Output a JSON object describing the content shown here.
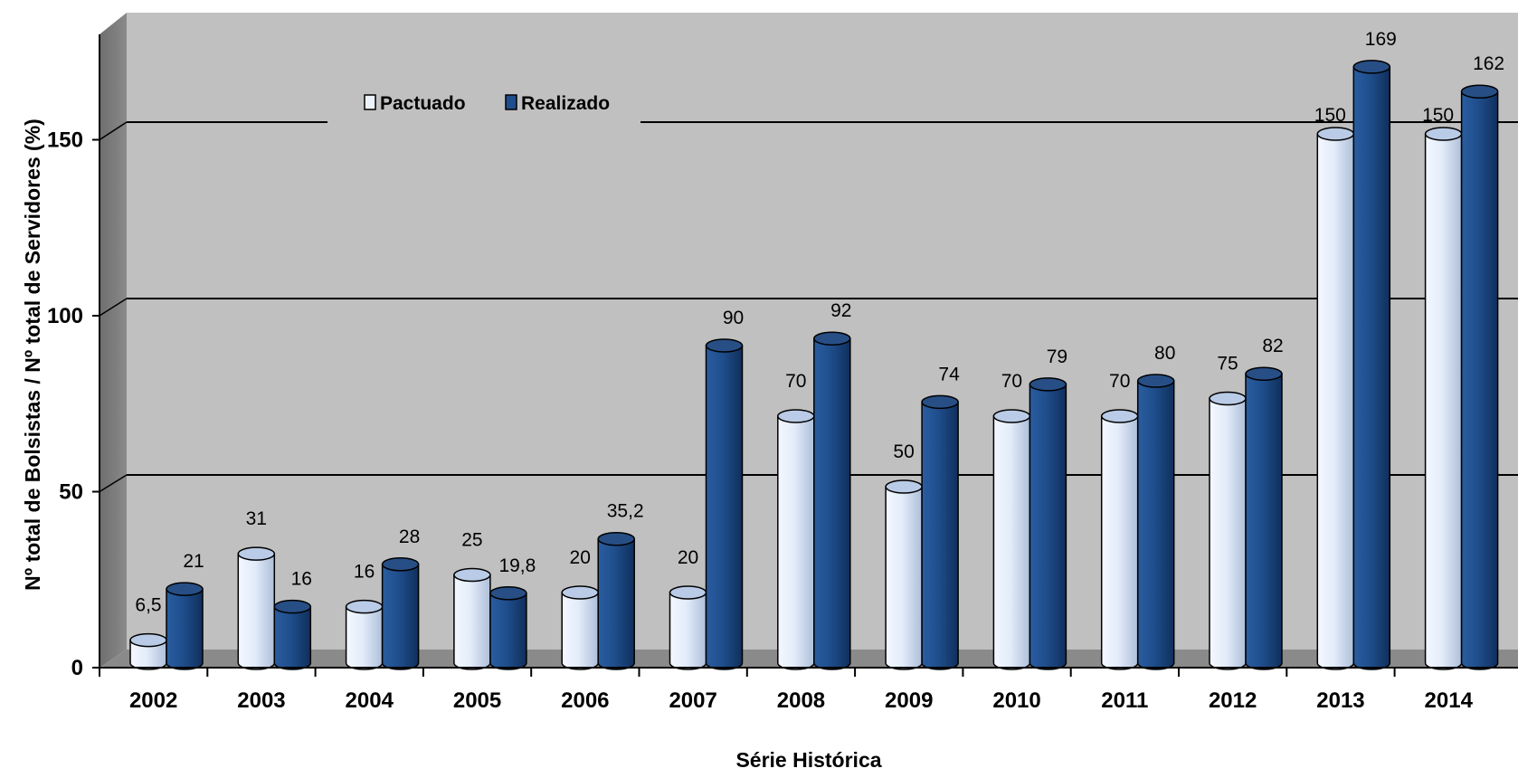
{
  "chart_data": {
    "type": "bar",
    "title": "",
    "xlabel": "Série Histórica",
    "ylabel": "Nº total de Bolsistas / Nº total de Servidores (%)",
    "ylim": [
      0,
      150
    ],
    "yticks": [
      "0",
      "50",
      "100",
      "150"
    ],
    "grid": true,
    "legend_position": "top-left",
    "categories": [
      "2002",
      "2003",
      "2004",
      "2005",
      "2006",
      "2007",
      "2008",
      "2009",
      "2010",
      "2011",
      "2012",
      "2013",
      "2014"
    ],
    "series": [
      {
        "name": "Pactuado",
        "color": "#dbe7f7",
        "values": [
          6.5,
          31,
          16,
          25,
          20,
          20,
          70,
          50,
          70,
          70,
          75,
          150,
          150
        ],
        "labels": [
          "6,5",
          "31",
          "16",
          "25",
          "20",
          "20",
          "70",
          "50",
          "70",
          "70",
          "75",
          "150",
          "150"
        ]
      },
      {
        "name": "Realizado",
        "color": "#1f4e8c",
        "values": [
          21,
          16,
          28,
          19.8,
          35.2,
          90,
          92,
          74,
          79,
          80,
          82,
          169,
          162
        ],
        "labels": [
          "21",
          "16",
          "28",
          "19,8",
          "35,2",
          "90",
          "92",
          "74",
          "79",
          "80",
          "82",
          "169",
          "162"
        ]
      }
    ]
  }
}
